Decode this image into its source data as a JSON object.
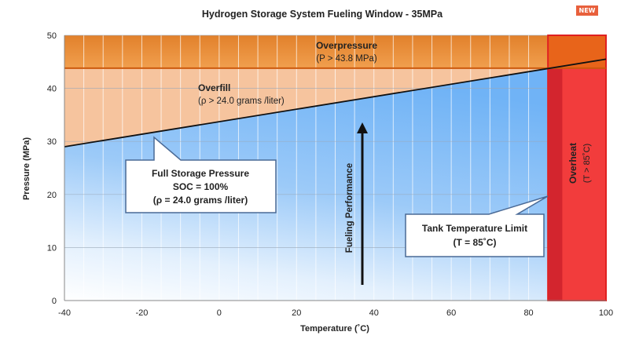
{
  "badge": "NEW",
  "chart_data": {
    "type": "area",
    "title": "Hydrogen Storage System Fueling Window - 35MPa",
    "xlabel": "Temperature (˚C)",
    "ylabel": "Pressure (MPa)",
    "xlim": [
      -40,
      100
    ],
    "ylim": [
      0,
      50
    ],
    "x_ticks": [
      -40,
      -20,
      0,
      20,
      40,
      60,
      80,
      100
    ],
    "y_ticks": [
      0,
      10,
      20,
      30,
      40,
      50
    ],
    "grid": true,
    "full_storage_line": {
      "x": [
        -40,
        100
      ],
      "y": [
        29,
        45.5
      ]
    },
    "overpressure_threshold": 43.8,
    "overheat_threshold": 85,
    "regions": [
      {
        "name": "overpressure",
        "label": "Overpressure",
        "sublabel": "(P > 43.8 MPa)",
        "color": "#e8882e"
      },
      {
        "name": "overfill",
        "label": "Overfill",
        "sublabel": "(ρ > 24.0 grams /liter)",
        "color": "#f6c49e"
      },
      {
        "name": "overheat",
        "label": "Overheat",
        "sublabel": "(T > 85˚C)",
        "color": "#f23c3c"
      },
      {
        "name": "fueling-window",
        "label": "",
        "sublabel": "",
        "color": "#6fb2f5"
      }
    ],
    "callouts": [
      {
        "name": "full-storage-pressure",
        "lines": [
          "Full Storage Pressure",
          "SOC = 100%",
          "(ρ = 24.0 grams /liter)"
        ]
      },
      {
        "name": "tank-temperature-limit",
        "lines": [
          "Tank Temperature Limit",
          "(T = 85˚C)"
        ]
      }
    ],
    "arrow_label": "Fueling Performance"
  }
}
